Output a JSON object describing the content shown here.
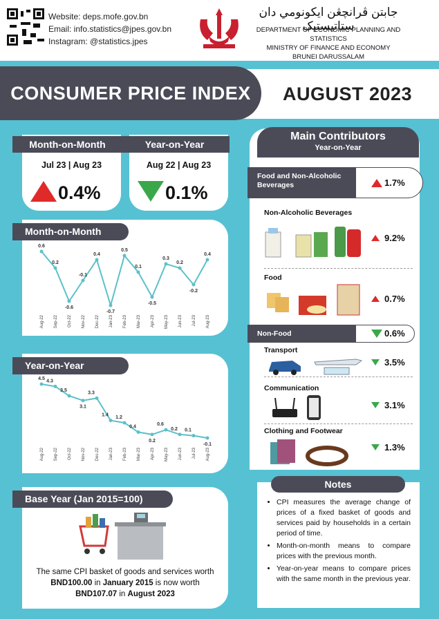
{
  "header": {
    "website": "Website: deps.mofe.gov.bn",
    "email": "Email: info.statistics@jpes.gov.bn",
    "instagram": "Instagram: @statistics.jpes",
    "jawi": "جابتن ڤرانچڠن ايكونومي دان ستاتيستيک",
    "department": [
      "DEPARTMENT OF ECONOMIC PLANNING AND STATISTICS",
      "MINISTRY OF FINANCE AND ECONOMY",
      "BRUNEI DARUSSALAM"
    ]
  },
  "banner": {
    "title": "CONSUMER PRICE INDEX",
    "period": "AUGUST 2023"
  },
  "summary": [
    {
      "title": "Month-on-Month",
      "periods": "Jul 23 | Aug 23",
      "value": "0.4%",
      "direction": "up"
    },
    {
      "title": "Year-on-Year",
      "periods": "Aug 22 | Aug 23",
      "value": "0.1%",
      "direction": "down"
    }
  ],
  "chart_data": [
    {
      "type": "line",
      "title": "Month-on-Month",
      "color": "#5cc0c9",
      "categories": [
        "Aug-22",
        "Sep-22",
        "Oct-22",
        "Nov-22",
        "Dec-22",
        "Jan-23",
        "Feb-23",
        "Mar-23",
        "Apr-23",
        "May-23",
        "Jun-23",
        "Jul-23",
        "Aug-23"
      ],
      "values": [
        0.6,
        0.2,
        -0.6,
        -0.1,
        0.4,
        -0.7,
        0.5,
        0.1,
        -0.5,
        0.3,
        0.2,
        -0.2,
        0.4
      ]
    },
    {
      "type": "line",
      "title": "Year-on-Year",
      "color": "#5cc0c9",
      "categories": [
        "Aug-22",
        "Sep-22",
        "Oct-22",
        "Nov-22",
        "Dec-22",
        "Jan-23",
        "Feb-23",
        "Mar-23",
        "Apr-23",
        "May-23",
        "Jun-23",
        "Jul-23",
        "Aug-23"
      ],
      "values": [
        4.5,
        4.3,
        3.5,
        3.1,
        3.3,
        1.4,
        1.2,
        0.4,
        0.2,
        0.6,
        0.2,
        0.1,
        -0.1
      ]
    }
  ],
  "base_year": {
    "title": "Base Year (Jan 2015=100)",
    "line1": "The same CPI basket of goods and services worth",
    "line2": [
      {
        "text": "BND100.00",
        "bold": true
      },
      {
        "text": " in "
      },
      {
        "text": "January 2015",
        "bold": true
      },
      {
        "text": " is now worth"
      }
    ],
    "line3": [
      {
        "text": "BND107.07",
        "bold": true
      },
      {
        "text": " in "
      },
      {
        "text": "August 2023",
        "bold": true
      }
    ]
  },
  "contributors": {
    "title": "Main Contributors",
    "subtitle": "Year-on-Year",
    "groups": [
      {
        "name": "Food and Non-Alcoholic Beverages",
        "value": "1.7%",
        "direction": "up",
        "items": [
          {
            "name": "Non-Alcoholic Beverages",
            "value": "9.2%",
            "direction": "up"
          },
          {
            "name": "Food",
            "value": "0.7%",
            "direction": "up"
          }
        ]
      },
      {
        "name": "Non-Food",
        "value": "0.6%",
        "direction": "down",
        "items": [
          {
            "name": "Transport",
            "value": "3.5%",
            "direction": "down"
          },
          {
            "name": "Communication",
            "value": "3.1%",
            "direction": "down"
          },
          {
            "name": "Clothing and Footwear",
            "value": "1.3%",
            "direction": "down"
          }
        ]
      }
    ]
  },
  "notes": {
    "title": "Notes",
    "items": [
      "CPI measures the average change of prices of a fixed basket of goods and services paid by households in a certain period of time.",
      "Month-on-month means to compare prices with the previous month.",
      "Year-on-year means to compare prices with the same month in the previous year."
    ]
  }
}
